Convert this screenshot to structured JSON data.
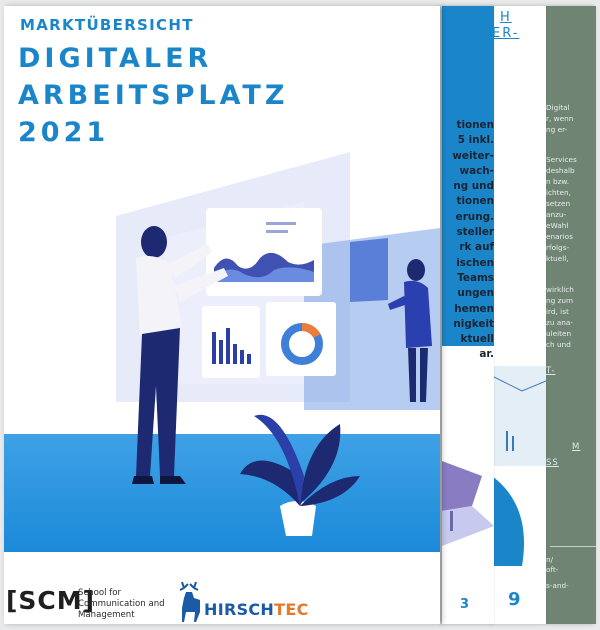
{
  "cover": {
    "kicker": "MARKTÜBERSICHT",
    "title_line1": "DIGITALER",
    "title_line2": "ARBEITSPLATZ",
    "title_line3": "2021"
  },
  "logos": {
    "scm_mark": "[SCM]",
    "scm_line1": "School for",
    "scm_line2": "Communication and",
    "scm_line3": "Management",
    "hirschtec_part1": "HIRSCH",
    "hirschtec_part2": "TEC"
  },
  "page_blue": {
    "page_number": "3",
    "text_lines": [
      "tionen",
      "5 inkl.",
      "weiter-",
      "wach-",
      "ng und",
      "tionen",
      "erung.",
      "steller",
      "rk auf",
      "ischen",
      "Teams",
      "ungen",
      "hemen",
      "nigkeit",
      "ktuell",
      "ar."
    ]
  },
  "page_white": {
    "heading_line1": "H",
    "heading_line2": "ER-",
    "page_number": "9"
  },
  "page_green": {
    "lines_a": [
      "Digital",
      "r, wenn",
      "ng er-"
    ],
    "lines_b": [
      "Services",
      "deshalb",
      "n bzw.",
      "ichten,",
      "setzen",
      "anzu-",
      "eWahl",
      "enarios",
      "rfolgs-",
      "ktuell,"
    ],
    "lines_c": [
      "wirklich",
      "ng zum",
      "ird, ist",
      "zu ana-",
      "uleiten",
      "ch und"
    ],
    "link1": "T-",
    "link2": "M",
    "link3": "SS",
    "foot1": "n/",
    "foot2": "oft-",
    "foot3": "s-and-"
  },
  "colors": {
    "brand_blue": "#1a86c9",
    "floor_blue": "#1c90e0",
    "sage": "#6f8472",
    "hirsch_blue": "#1a5aa6",
    "hirsch_orange": "#e6782c"
  }
}
